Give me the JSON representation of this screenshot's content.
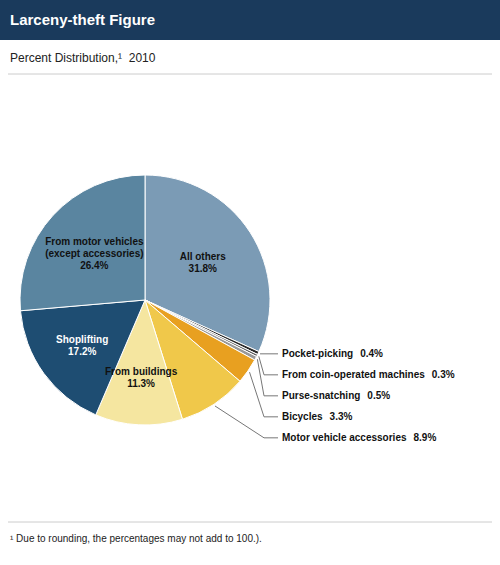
{
  "chart_data": {
    "type": "pie",
    "title": "Larceny-theft Figure",
    "subtitle": "Percent Distribution,¹  2010",
    "footnote": "¹ Due to rounding, the percentages may not add to 100.).",
    "categories": [
      "All others",
      "Pocket-picking",
      "From coin-operated machines",
      "Purse-snatching",
      "Bicycles",
      "Motor vehicle accessories",
      "From buildings",
      "Shoplifting",
      "From motor vehicles\n(except accessories)"
    ],
    "values": [
      31.8,
      0.4,
      0.3,
      0.5,
      3.3,
      8.9,
      11.3,
      17.2,
      26.4
    ],
    "value_labels": [
      "31.8%",
      "0.4%",
      "0.3%",
      "0.5%",
      "3.3%",
      "8.9%",
      "11.3%",
      "17.2%",
      "26.4%"
    ],
    "colors": [
      "#7b9bb5",
      "#2a2a2a",
      "#666666",
      "#999999",
      "#e8a020",
      "#f0c84a",
      "#f5e6a0",
      "#1e4d72",
      "#5a85a0"
    ],
    "data_labels": true
  }
}
